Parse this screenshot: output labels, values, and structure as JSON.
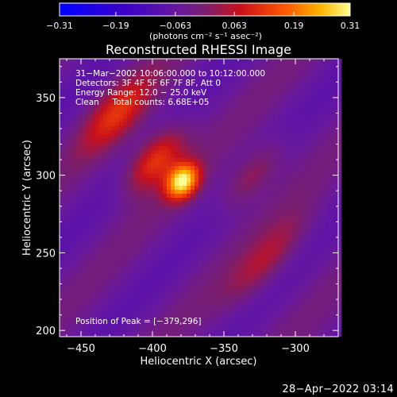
{
  "chart_data": {
    "type": "heatmap",
    "title": "Reconstructed RHESSI Image",
    "xlabel": "Heliocentric X (arcsec)",
    "ylabel": "Heliocentric Y (arcsec)",
    "xlim": [
      -465,
      -270
    ],
    "ylim": [
      196,
      375
    ],
    "x_ticks": [
      -450,
      -400,
      -350,
      -300
    ],
    "y_ticks": [
      200,
      250,
      300,
      350
    ],
    "x_tick_labels": [
      "−450",
      "−400",
      "−350",
      "−300"
    ],
    "y_tick_labels": [
      "200",
      "250",
      "300",
      "350"
    ],
    "colorbar": {
      "range": [
        -0.31,
        0.31
      ],
      "tick_values": [
        -0.31,
        -0.19,
        -0.063,
        0.063,
        0.19,
        0.31
      ],
      "tick_labels": [
        "−0.31",
        "−0.19",
        "−0.063",
        "0.063",
        "0.19",
        "0.31"
      ],
      "units_label": "(photons cm⁻² s⁻¹ asec⁻²)"
    },
    "annotations": {
      "time_range": "31−Mar−2002 10:06:00.000 to 10:12:00.000",
      "detectors": "Detectors: 3F 4F 5F 6F 7F 8F, Att 0",
      "energy_range": "Energy Range: 12.0 − 25.0 keV",
      "clean_counts": "Clean     Total counts: 6.68E+05",
      "peak_position": "Position of Peak = [−379,296]"
    },
    "peak": {
      "x": -379,
      "y": 296,
      "value": 0.31
    },
    "sources": [
      {
        "x": -379,
        "y": 296,
        "amplitude": 0.34,
        "sigma_major": 9,
        "sigma_minor": 7
      },
      {
        "x": -398,
        "y": 310,
        "amplitude": 0.19,
        "sigma_major": 18,
        "sigma_minor": 9
      },
      {
        "x": -425,
        "y": 340,
        "amplitude": 0.14,
        "sigma_major": 22,
        "sigma_minor": 10
      },
      {
        "x": -330,
        "y": 300,
        "amplitude": 0.1,
        "sigma_major": 20,
        "sigma_minor": 8
      },
      {
        "x": -320,
        "y": 245,
        "amplitude": 0.1,
        "sigma_major": 28,
        "sigma_minor": 9
      }
    ]
  },
  "footer": {
    "timestamp": "28−Apr−2022 03:14"
  }
}
